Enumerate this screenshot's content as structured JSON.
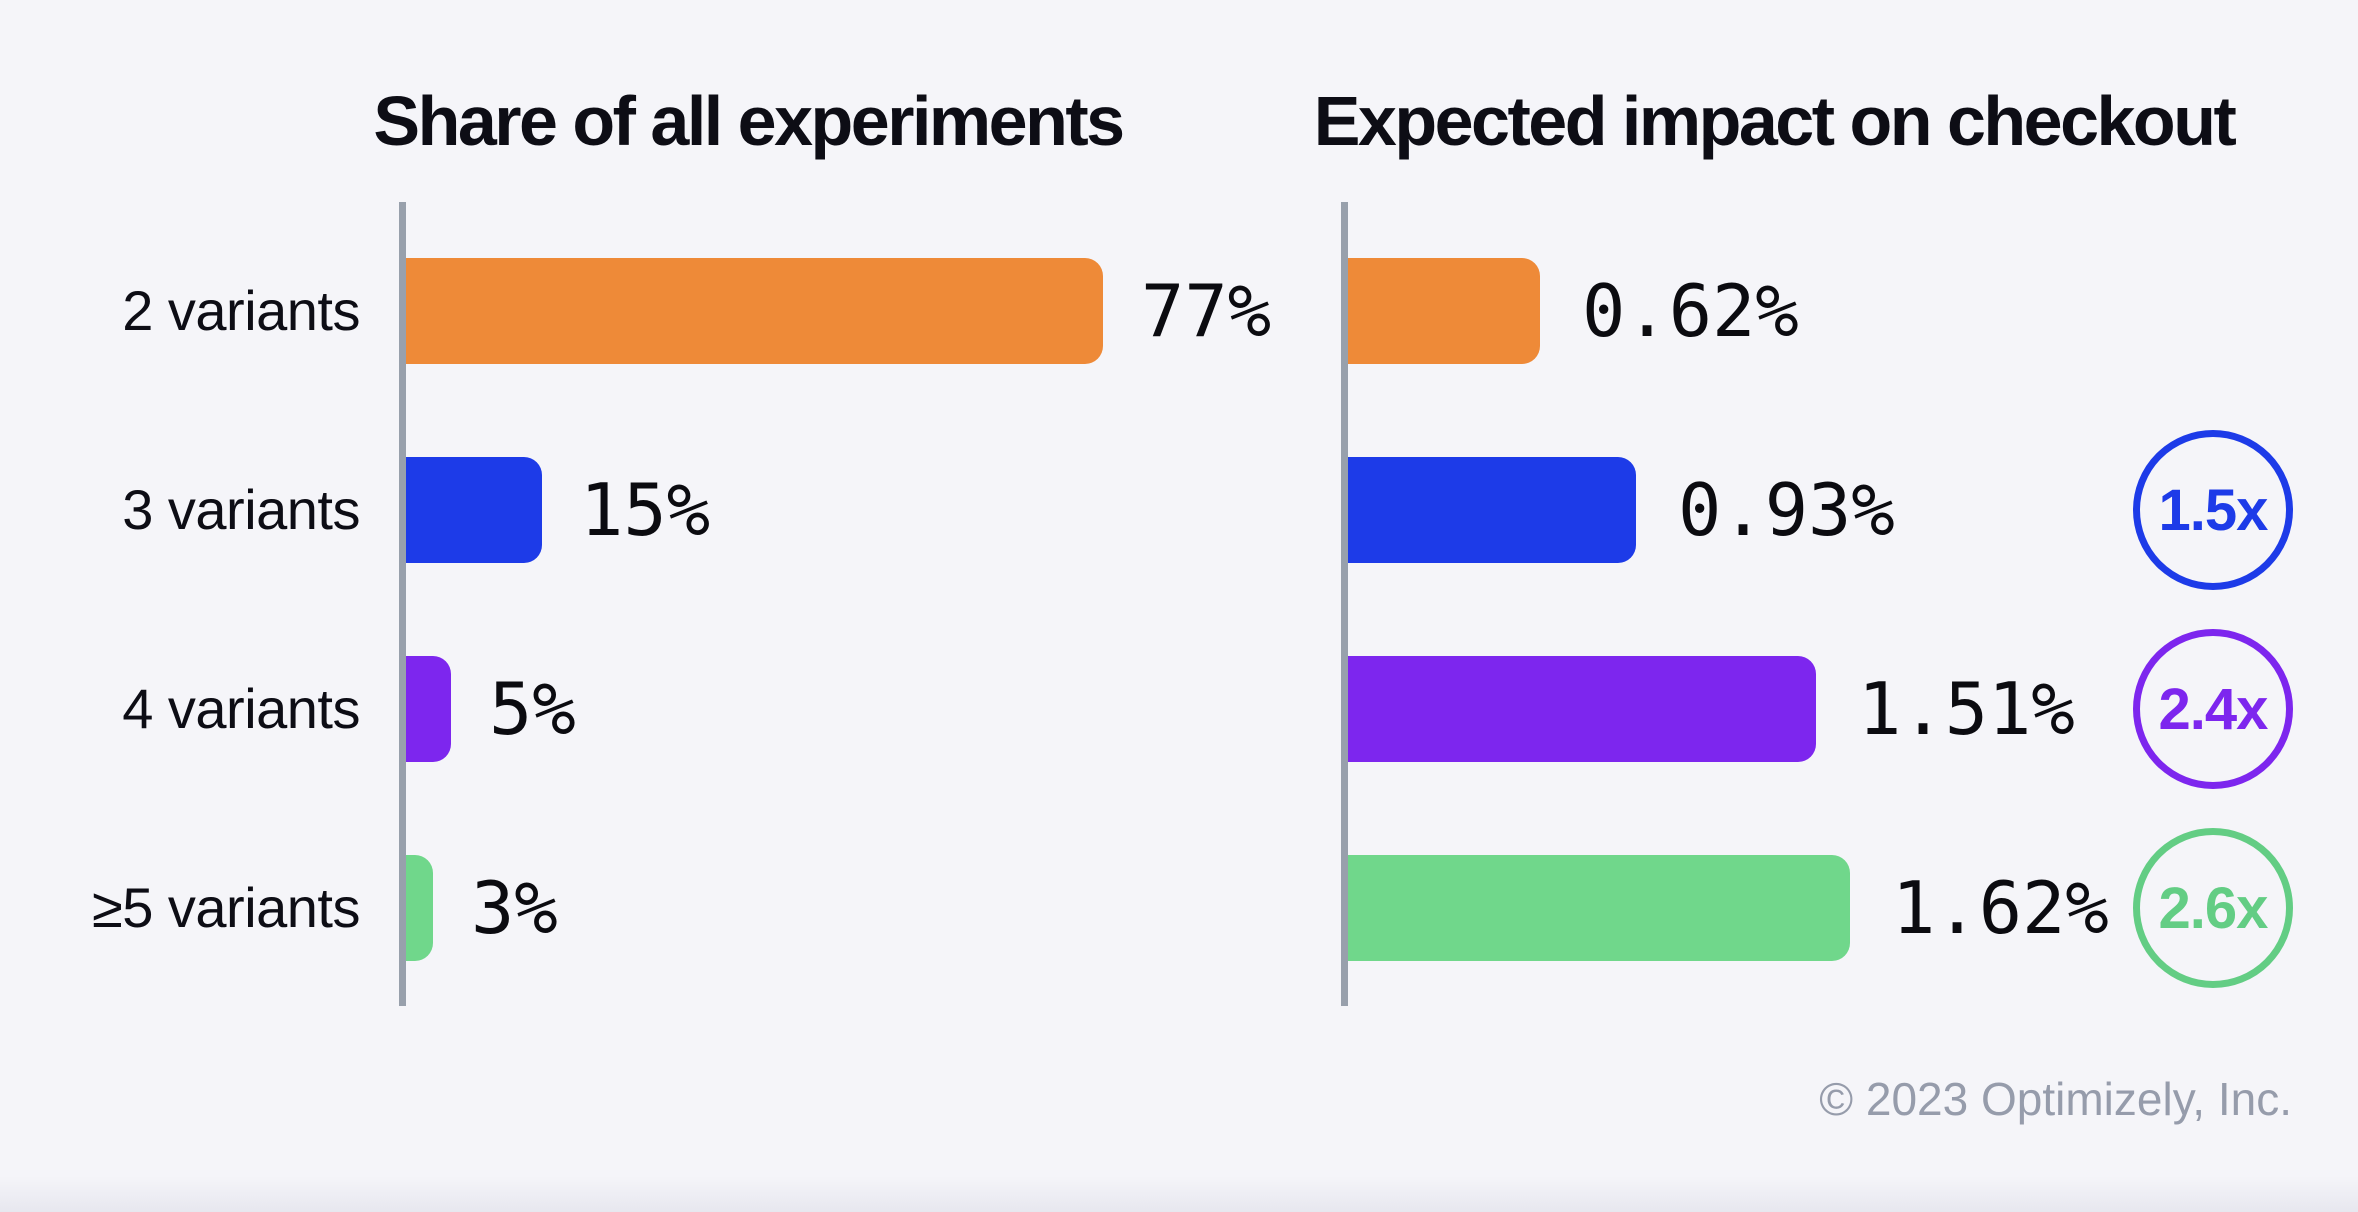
{
  "page": {
    "background": "#f5f5f9",
    "text_color": "#0d0d15",
    "axis_color": "#98a0ac",
    "footer": "© 2023 Optimizely, Inc.",
    "footer_color": "#969cab"
  },
  "chart_data": [
    {
      "type": "bar",
      "orientation": "horizontal",
      "title": "Share of all experiments",
      "categories": [
        "2 variants",
        "3 variants",
        "4 variants",
        "≥5 variants"
      ],
      "values": [
        77,
        15,
        5,
        3
      ],
      "value_labels": [
        "77%",
        "15%",
        "5%",
        "3%"
      ],
      "bar_colors": [
        "#ee8a38",
        "#1d3be8",
        "#7d26ee",
        "#70d78b"
      ],
      "xlim": [
        0,
        100
      ],
      "grid": "off",
      "legend": "none",
      "axis_style": "single vertical baseline, no ticks"
    },
    {
      "type": "bar",
      "orientation": "horizontal",
      "title": "Expected impact on checkout",
      "categories": [
        "2 variants",
        "3 variants",
        "4 variants",
        "≥5 variants"
      ],
      "values": [
        0.62,
        0.93,
        1.51,
        1.62
      ],
      "value_labels": [
        "0.62%",
        "0.93%",
        "1.51%",
        "1.62%"
      ],
      "multipliers": [
        "",
        "1.5x",
        "2.4x",
        "2.6x"
      ],
      "multiplier_colors": [
        "",
        "#1d3be8",
        "#7d26ee",
        "#63cd84"
      ],
      "bar_colors": [
        "#ee8a38",
        "#1d3be8",
        "#7d26ee",
        "#70d78b"
      ],
      "xlim": [
        0,
        2
      ],
      "grid": "off",
      "legend": "none",
      "axis_style": "single vertical baseline, no ticks"
    }
  ]
}
